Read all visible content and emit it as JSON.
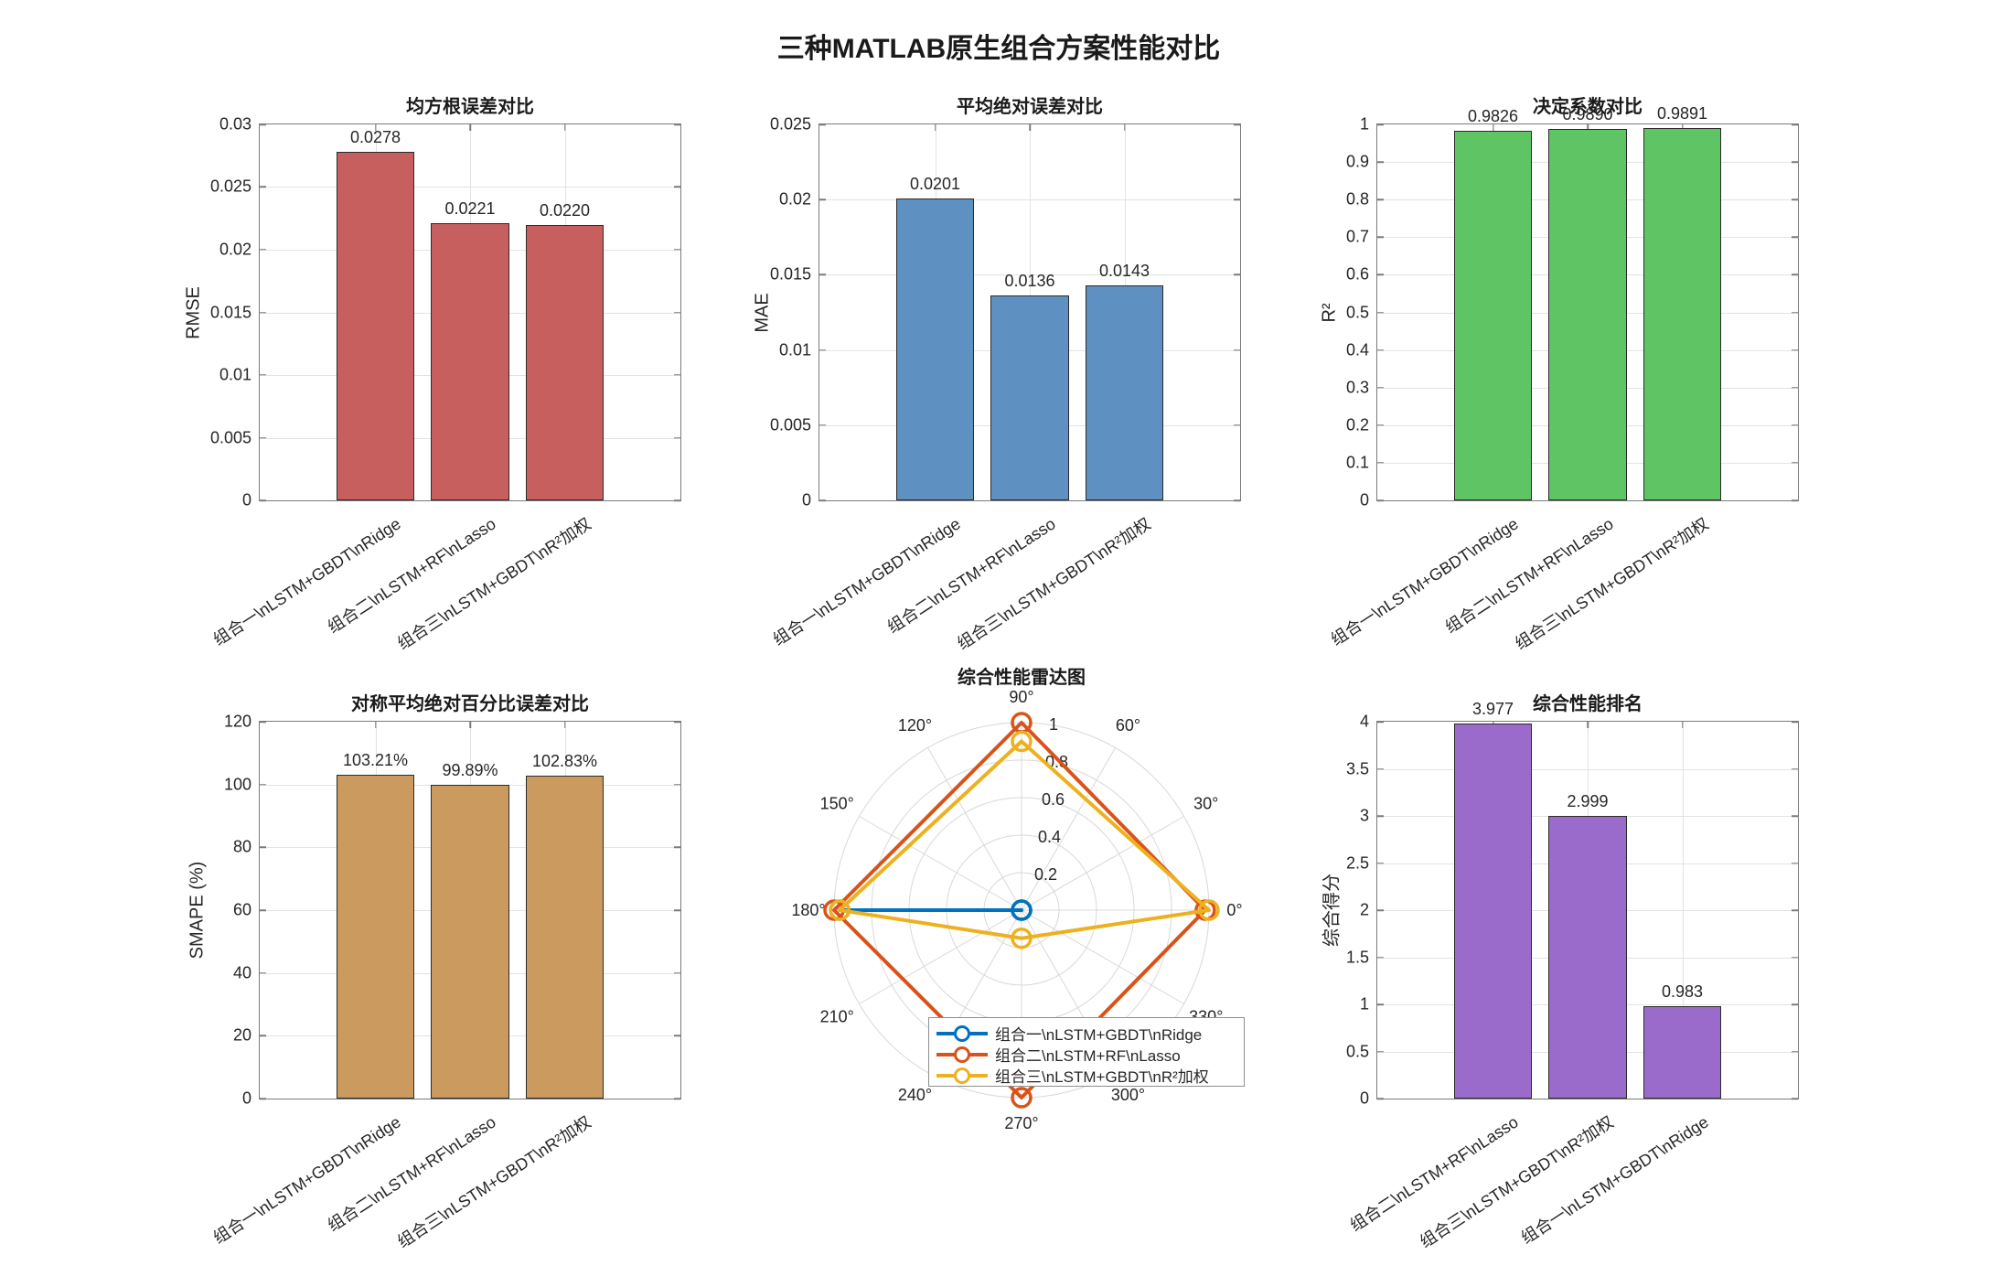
{
  "figure": {
    "title": "三种MATLAB原生组合方案性能对比",
    "background": "#ffffff"
  },
  "colors": {
    "axis": "#7b7b7b",
    "grid": "#e3e3e3",
    "text": "#262626",
    "bar_edge": "#2b2b2b",
    "rmse_bar": "#c85f5f",
    "mae_bar": "#5f90c2",
    "r2_bar": "#5fc564",
    "smape_bar": "#ca9a5e",
    "score_bar": "#9b6bcb",
    "radar_blue": "#0072BD",
    "radar_orange": "#D95319",
    "radar_yellow": "#EDB120"
  },
  "chart_data": [
    {
      "id": "rmse",
      "type": "bar",
      "title": "均方根误差对比",
      "ylabel": "RMSE",
      "categories": [
        "组合一\\nLSTM+GBDT\\nRidge",
        "组合二\\nLSTM+RF\\nLasso",
        "组合三\\nLSTM+GBDT\\nR²加权"
      ],
      "values": [
        0.0278,
        0.0221,
        0.022
      ],
      "value_labels": [
        "0.0278",
        "0.0221",
        "0.0220"
      ],
      "ylim": [
        0,
        0.03
      ],
      "yticks": [
        0,
        0.005,
        0.01,
        0.015,
        0.02,
        0.025,
        0.03
      ],
      "ytick_labels": [
        "0",
        "0.005",
        "0.01",
        "0.015",
        "0.02",
        "0.025",
        "0.03"
      ],
      "grid": true,
      "bar_color": "#c85f5f"
    },
    {
      "id": "mae",
      "type": "bar",
      "title": "平均绝对误差对比",
      "ylabel": "MAE",
      "categories": [
        "组合一\\nLSTM+GBDT\\nRidge",
        "组合二\\nLSTM+RF\\nLasso",
        "组合三\\nLSTM+GBDT\\nR²加权"
      ],
      "values": [
        0.0201,
        0.0136,
        0.0143
      ],
      "value_labels": [
        "0.0201",
        "0.0136",
        "0.0143"
      ],
      "ylim": [
        0,
        0.025
      ],
      "yticks": [
        0,
        0.005,
        0.01,
        0.015,
        0.02,
        0.025
      ],
      "ytick_labels": [
        "0",
        "0.005",
        "0.01",
        "0.015",
        "0.02",
        "0.025"
      ],
      "grid": true,
      "bar_color": "#5f90c2"
    },
    {
      "id": "r2",
      "type": "bar",
      "title": "决定系数对比",
      "ylabel": "R²",
      "categories": [
        "组合一\\nLSTM+GBDT\\nRidge",
        "组合二\\nLSTM+RF\\nLasso",
        "组合三\\nLSTM+GBDT\\nR²加权"
      ],
      "values": [
        0.9826,
        0.989,
        0.9891
      ],
      "value_labels": [
        "0.9826",
        "0.9890",
        "0.9891"
      ],
      "ylim": [
        0,
        1
      ],
      "yticks": [
        0,
        0.1,
        0.2,
        0.3,
        0.4,
        0.5,
        0.6,
        0.7,
        0.8,
        0.9,
        1
      ],
      "ytick_labels": [
        "0",
        "0.1",
        "0.2",
        "0.3",
        "0.4",
        "0.5",
        "0.6",
        "0.7",
        "0.8",
        "0.9",
        "1"
      ],
      "grid": true,
      "bar_color": "#5fc564"
    },
    {
      "id": "smape",
      "type": "bar",
      "title": "对称平均绝对百分比误差对比",
      "ylabel": "SMAPE (%)",
      "categories": [
        "组合一\\nLSTM+GBDT\\nRidge",
        "组合二\\nLSTM+RF\\nLasso",
        "组合三\\nLSTM+GBDT\\nR²加权"
      ],
      "values": [
        103.21,
        99.89,
        102.83
      ],
      "value_labels": [
        "103.21%",
        "99.89%",
        "102.83%"
      ],
      "ylim": [
        0,
        120
      ],
      "yticks": [
        0,
        20,
        40,
        60,
        80,
        100,
        120
      ],
      "ytick_labels": [
        "0",
        "20",
        "40",
        "60",
        "80",
        "100",
        "120"
      ],
      "grid": true,
      "bar_color": "#ca9a5e"
    },
    {
      "id": "radar",
      "type": "polar-line",
      "title": "综合性能雷达图",
      "angle_tick_labels": [
        "0°",
        "30°",
        "60°",
        "90°",
        "120°",
        "150°",
        "180°",
        "210°",
        "240°",
        "270°",
        "300°",
        "330°"
      ],
      "angle_ticks_deg": [
        0,
        30,
        60,
        90,
        120,
        150,
        180,
        210,
        240,
        270,
        300,
        330
      ],
      "r_ticks": [
        0.2,
        0.4,
        0.6,
        0.8,
        1
      ],
      "r_tick_labels": [
        "0.2",
        "0.4",
        "0.6",
        "0.8",
        "1"
      ],
      "rlim": [
        0,
        1
      ],
      "data_angles_deg": [
        0,
        90,
        180,
        270
      ],
      "series": [
        {
          "name": "组合一\\nLSTM+GBDT\\nRidge",
          "color": "#0072BD",
          "values": [
            0,
            0,
            0.97,
            0
          ]
        },
        {
          "name": "组合二\\nLSTM+RF\\nLasso",
          "color": "#D95319",
          "values": [
            0.98,
            1.0,
            1.0,
            1.0
          ]
        },
        {
          "name": "组合三\\nLSTM+GBDT\\nR²加权",
          "color": "#EDB120",
          "values": [
            1.0,
            0.9,
            0.97,
            0.15
          ]
        }
      ],
      "legend_position": "south-inside"
    },
    {
      "id": "score",
      "type": "bar",
      "title": "综合性能排名",
      "ylabel": "综合得分",
      "categories": [
        "组合二\\nLSTM+RF\\nLasso",
        "组合三\\nLSTM+GBDT\\nR²加权",
        "组合一\\nLSTM+GBDT\\nRidge"
      ],
      "values": [
        3.977,
        2.999,
        0.983
      ],
      "value_labels": [
        "3.977",
        "2.999",
        "0.983"
      ],
      "ylim": [
        0,
        4
      ],
      "yticks": [
        0,
        0.5,
        1,
        1.5,
        2,
        2.5,
        3,
        3.5,
        4
      ],
      "ytick_labels": [
        "0",
        "0.5",
        "1",
        "1.5",
        "2",
        "2.5",
        "3",
        "3.5",
        "4"
      ],
      "grid": true,
      "bar_color": "#9b6bcb"
    }
  ]
}
